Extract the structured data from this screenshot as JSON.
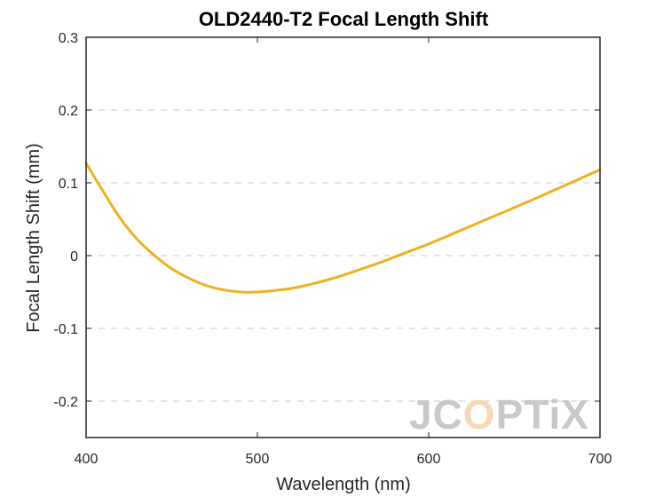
{
  "chart_data": {
    "type": "line",
    "title": "OLD2440-T2 Focal Length Shift",
    "xlabel": "Wavelength (nm)",
    "ylabel": "Focal Length Shift (mm)",
    "xlim": [
      400,
      700
    ],
    "ylim": [
      -0.25,
      0.3
    ],
    "xticks": [
      400,
      500,
      600,
      700
    ],
    "xtick_labels": [
      "400",
      "500",
      "600",
      "700"
    ],
    "yticks": [
      -0.2,
      -0.1,
      0,
      0.1,
      0.2,
      0.3
    ],
    "ytick_labels": [
      "-0.2",
      "-0.1",
      "0",
      "0.1",
      "0.2",
      "0.3"
    ],
    "grid": "horizontal dashed",
    "series": [
      {
        "color": "#EDB120",
        "x": [
          400,
          410,
          420,
          430,
          440,
          450,
          460,
          470,
          480,
          490,
          495,
          500,
          510,
          520,
          530,
          540,
          550,
          560,
          570,
          580,
          590,
          600,
          620,
          640,
          660,
          680,
          700
        ],
        "y": [
          0.127,
          0.088,
          0.051,
          0.022,
          0.0,
          -0.018,
          -0.031,
          -0.041,
          -0.047,
          -0.05,
          -0.0505,
          -0.05,
          -0.048,
          -0.045,
          -0.04,
          -0.034,
          -0.027,
          -0.019,
          -0.011,
          -0.002,
          0.007,
          0.016,
          0.036,
          0.056,
          0.076,
          0.097,
          0.118
        ]
      }
    ]
  },
  "watermark": {
    "parts": [
      "JC",
      "O",
      "PTiX"
    ],
    "colors": [
      "#c8c8c8",
      "#f7d9b5",
      "#c8c8c8"
    ]
  }
}
